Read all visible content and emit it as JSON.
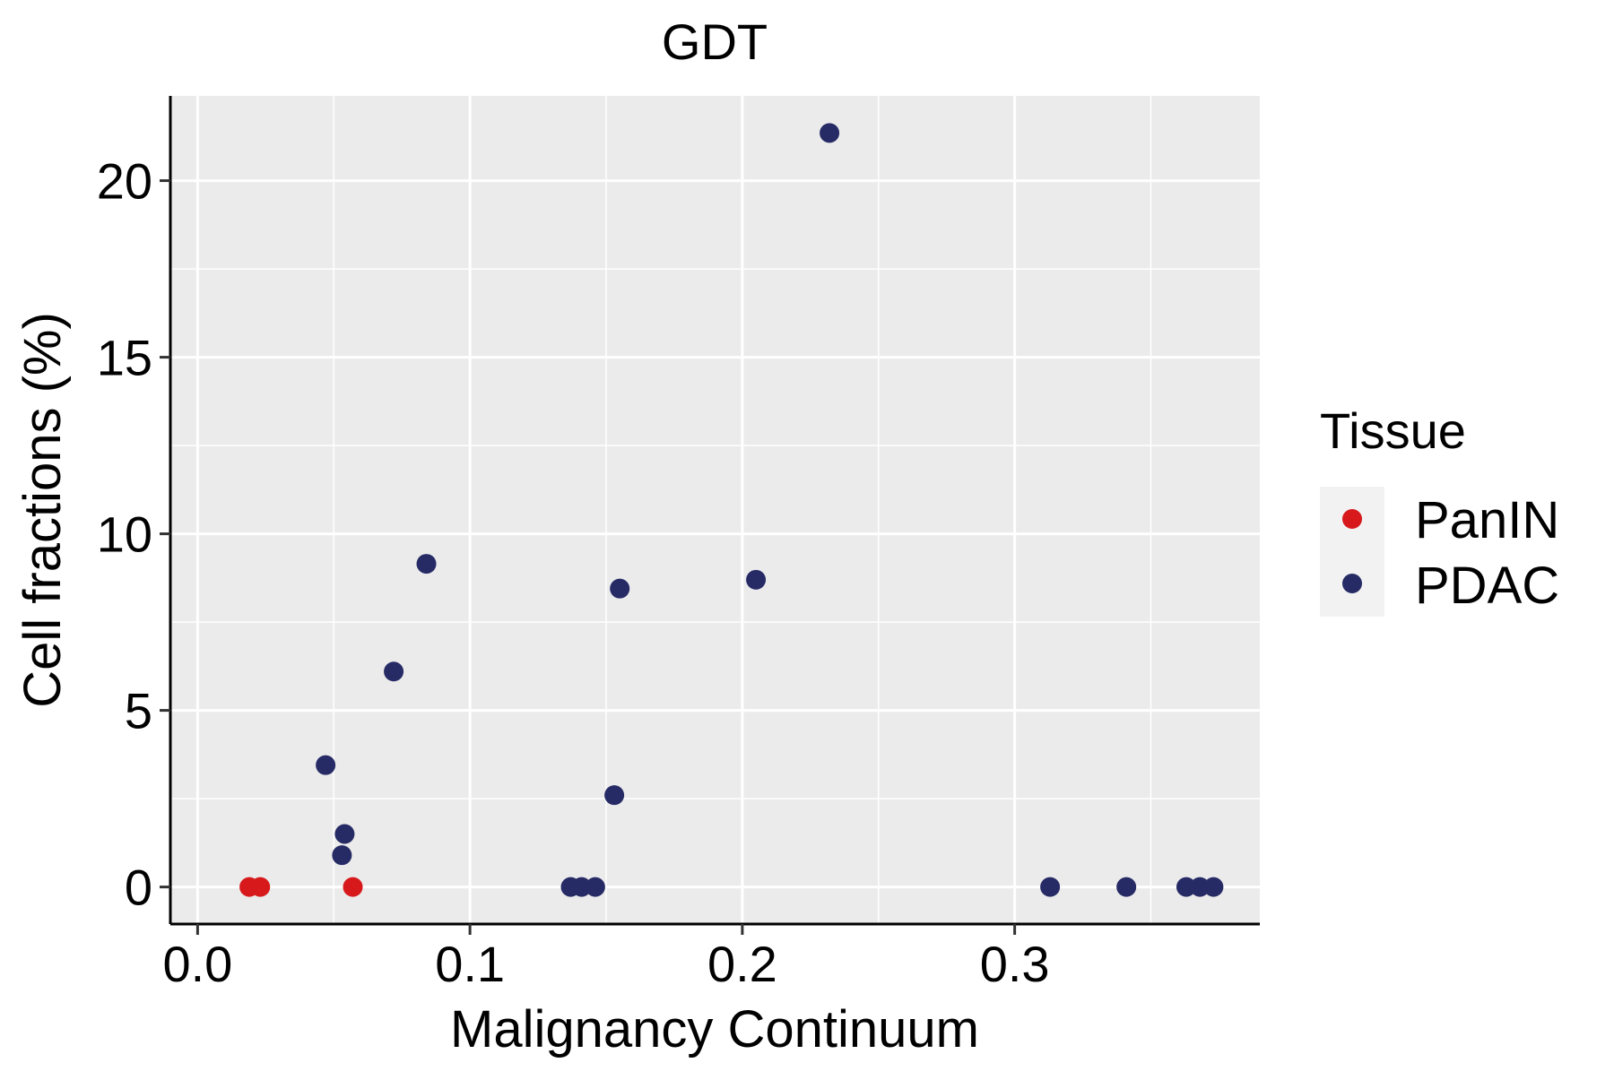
{
  "chart_data": {
    "type": "scatter",
    "title": "GDT",
    "xlabel": "Malignancy Continuum",
    "ylabel": "Cell fractions (%)",
    "xlim": [
      -0.01,
      0.39
    ],
    "ylim": [
      -1.05,
      22.4
    ],
    "xticks": [
      0.0,
      0.1,
      0.2,
      0.3
    ],
    "xtick_labels": [
      "0.0",
      "0.1",
      "0.2",
      "0.3"
    ],
    "yticks": [
      0,
      5,
      10,
      15,
      20
    ],
    "ytick_labels": [
      "0",
      "5",
      "10",
      "15",
      "20"
    ],
    "grid": true,
    "legend": {
      "title": "Tissue",
      "position": "right"
    },
    "series": [
      {
        "name": "PanIN",
        "color": "#d7191c",
        "points": [
          {
            "x": 0.019,
            "y": 0
          },
          {
            "x": 0.023,
            "y": 0
          },
          {
            "x": 0.057,
            "y": 0
          }
        ]
      },
      {
        "name": "PDAC",
        "color": "#262b66",
        "points": [
          {
            "x": 0.047,
            "y": 3.45
          },
          {
            "x": 0.054,
            "y": 1.5
          },
          {
            "x": 0.053,
            "y": 0.9
          },
          {
            "x": 0.072,
            "y": 6.1
          },
          {
            "x": 0.084,
            "y": 9.15
          },
          {
            "x": 0.137,
            "y": 0
          },
          {
            "x": 0.141,
            "y": 0
          },
          {
            "x": 0.146,
            "y": 0
          },
          {
            "x": 0.153,
            "y": 2.6
          },
          {
            "x": 0.155,
            "y": 8.45
          },
          {
            "x": 0.205,
            "y": 8.7
          },
          {
            "x": 0.232,
            "y": 21.35
          },
          {
            "x": 0.313,
            "y": 0
          },
          {
            "x": 0.341,
            "y": 0
          },
          {
            "x": 0.363,
            "y": 0
          },
          {
            "x": 0.368,
            "y": 0
          },
          {
            "x": 0.373,
            "y": 0
          }
        ]
      }
    ]
  }
}
